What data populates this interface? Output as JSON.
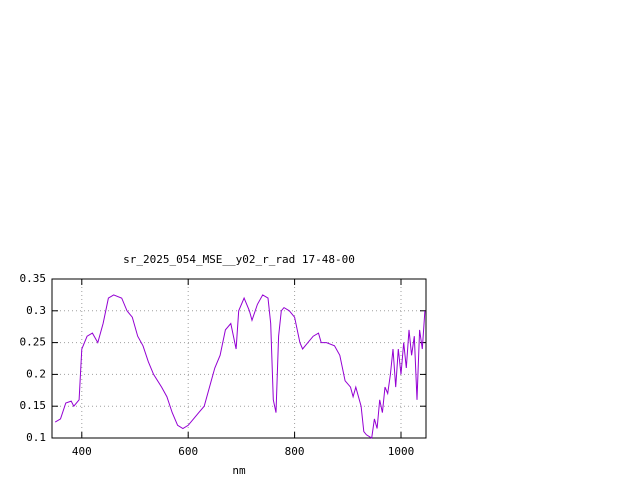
{
  "chart_data": {
    "type": "line",
    "title": "sr_2025_054_MSE__y02_r_rad 17-48-00",
    "x_label": "nm",
    "xlim": [
      344,
      1047
    ],
    "ylim": [
      0.1,
      0.35
    ],
    "xticks": [
      400,
      600,
      800,
      1000
    ],
    "yticks": [
      0.1,
      0.15,
      0.2,
      0.25,
      0.3,
      0.35
    ],
    "grid": true,
    "series": [
      {
        "color": "#9400d3",
        "x": [
          350,
          360,
          370,
          380,
          385,
          395,
          400,
          410,
          420,
          430,
          440,
          450,
          460,
          475,
          485,
          495,
          505,
          515,
          525,
          535,
          550,
          560,
          570,
          580,
          590,
          600,
          610,
          620,
          630,
          640,
          650,
          660,
          670,
          680,
          690,
          695,
          705,
          715,
          720,
          730,
          740,
          750,
          755,
          760,
          765,
          770,
          775,
          780,
          790,
          800,
          810,
          815,
          825,
          835,
          845,
          850,
          860,
          875,
          885,
          895,
          905,
          910,
          915,
          925,
          930,
          935,
          945,
          950,
          955,
          960,
          965,
          970,
          975,
          980,
          985,
          990,
          995,
          1000,
          1005,
          1010,
          1015,
          1020,
          1025,
          1030,
          1035,
          1040,
          1045
        ],
        "values": [
          0.125,
          0.13,
          0.155,
          0.158,
          0.15,
          0.16,
          0.24,
          0.26,
          0.265,
          0.25,
          0.28,
          0.32,
          0.325,
          0.32,
          0.3,
          0.29,
          0.26,
          0.245,
          0.22,
          0.2,
          0.18,
          0.165,
          0.14,
          0.12,
          0.115,
          0.12,
          0.13,
          0.14,
          0.15,
          0.18,
          0.21,
          0.23,
          0.27,
          0.28,
          0.24,
          0.3,
          0.32,
          0.3,
          0.285,
          0.31,
          0.325,
          0.32,
          0.28,
          0.16,
          0.14,
          0.26,
          0.3,
          0.305,
          0.3,
          0.29,
          0.25,
          0.24,
          0.25,
          0.26,
          0.265,
          0.25,
          0.25,
          0.245,
          0.23,
          0.19,
          0.18,
          0.165,
          0.18,
          0.15,
          0.11,
          0.105,
          0.1,
          0.13,
          0.115,
          0.16,
          0.14,
          0.18,
          0.17,
          0.2,
          0.24,
          0.18,
          0.24,
          0.2,
          0.25,
          0.21,
          0.27,
          0.23,
          0.26,
          0.16,
          0.27,
          0.24,
          0.3
        ]
      }
    ]
  }
}
